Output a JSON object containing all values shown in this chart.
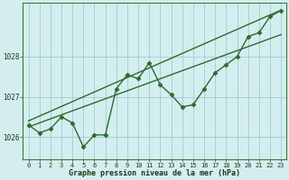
{
  "x": [
    0,
    1,
    2,
    3,
    4,
    5,
    6,
    7,
    8,
    9,
    10,
    11,
    12,
    13,
    14,
    15,
    16,
    17,
    18,
    19,
    20,
    21,
    22,
    23
  ],
  "y_main": [
    1026.3,
    1026.1,
    1026.2,
    1026.5,
    1026.35,
    1025.75,
    1026.05,
    1026.05,
    1027.2,
    1027.55,
    1027.45,
    1027.85,
    1027.3,
    1027.05,
    1026.75,
    1026.8,
    1027.2,
    1027.6,
    1027.8,
    1028.0,
    1028.5,
    1028.6,
    1029.0,
    1029.15
  ],
  "y_trend_low": [
    1026.25,
    1026.35,
    1026.45,
    1026.55,
    1026.65,
    1026.75,
    1026.85,
    1026.95,
    1027.05,
    1027.15,
    1027.25,
    1027.35,
    1027.45,
    1027.55,
    1027.65,
    1027.75,
    1027.85,
    1027.95,
    1028.05,
    1028.15,
    1028.25,
    1028.35,
    1028.45,
    1028.55
  ],
  "y_trend_high": [
    1026.4,
    1026.52,
    1026.64,
    1026.76,
    1026.88,
    1027.0,
    1027.12,
    1027.24,
    1027.36,
    1027.48,
    1027.6,
    1027.72,
    1027.84,
    1027.96,
    1028.08,
    1028.2,
    1028.32,
    1028.44,
    1028.56,
    1028.68,
    1028.8,
    1028.92,
    1029.04,
    1029.16
  ],
  "line_color": "#2d6a2d",
  "bg_color": "#d4eef0",
  "grid_color": "#90c8c8",
  "xlabel": "Graphe pression niveau de la mer (hPa)",
  "ylim": [
    1025.45,
    1029.35
  ],
  "xlim": [
    -0.5,
    23.5
  ],
  "yticks": [
    1026,
    1027,
    1028
  ],
  "xticks": [
    0,
    1,
    2,
    3,
    4,
    5,
    6,
    7,
    8,
    9,
    10,
    11,
    12,
    13,
    14,
    15,
    16,
    17,
    18,
    19,
    20,
    21,
    22,
    23
  ],
  "marker": "D",
  "marker_size": 2.5,
  "linewidth": 1.0
}
